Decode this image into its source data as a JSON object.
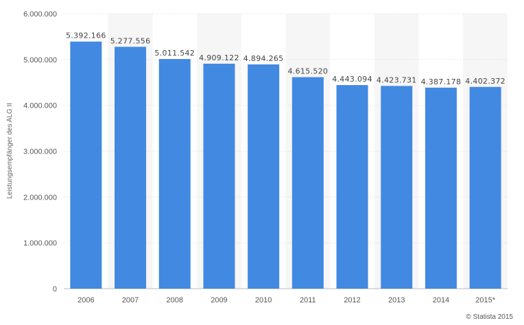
{
  "chart_data": {
    "type": "bar",
    "title": "",
    "xlabel": "",
    "ylabel": "Leistungsempfänger des ALG II",
    "categories": [
      "2006",
      "2007",
      "2008",
      "2009",
      "2010",
      "2011",
      "2012",
      "2013",
      "2014",
      "2015*"
    ],
    "values": [
      5392166,
      5277556,
      5011542,
      4909122,
      4894265,
      4615520,
      4443094,
      4423731,
      4387178,
      4402372
    ],
    "value_labels": [
      "5.392.166",
      "5.277.556",
      "5.011.542",
      "4.909.122",
      "4.894.265",
      "4.615.520",
      "4.443.094",
      "4.423.731",
      "4.387.178",
      "4.402.372"
    ],
    "ylim": [
      0,
      6000000
    ],
    "yticks": [
      0,
      1000000,
      2000000,
      3000000,
      4000000,
      5000000,
      6000000
    ],
    "ytick_labels": [
      "0",
      "1.000.000",
      "2.000.000",
      "3.000.000",
      "4.000.000",
      "5.000.000",
      "6.000.000"
    ],
    "grid": true,
    "colors": {
      "bar": "#4289e2",
      "band": "#f6f6f6",
      "grid": "#dddddd"
    }
  },
  "credit": "© Statista 2015"
}
